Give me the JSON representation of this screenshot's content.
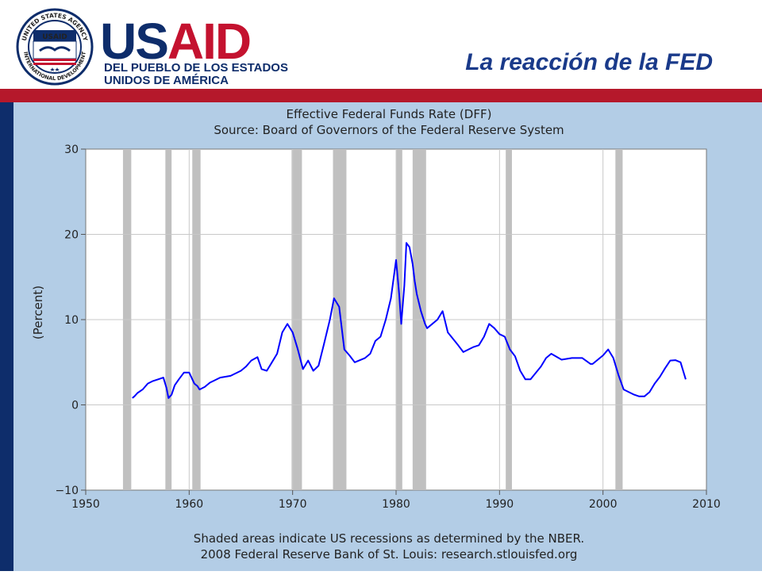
{
  "header": {
    "logo": {
      "seal_text_top": "UNITED STATES AGENCY",
      "seal_text_bottom": "INTERNATIONAL DEVELOPMENT",
      "seal_badge": "USAID",
      "wordmark_us": "US",
      "wordmark_aid": "AID",
      "tagline_line1": "DEL PUEBLO DE LOS ESTADOS",
      "tagline_line2": "UNIDOS DE AMÉRICA"
    },
    "slide_title": "La reacción de la FED"
  },
  "colors": {
    "brand_navy": "#0e2d6b",
    "brand_red": "#c4122f",
    "chart_background": "#b3cde6",
    "plot_background": "#ffffff",
    "series_color": "#0000ff",
    "recession_shade": "#c0c0c0"
  },
  "chart_data": {
    "type": "line",
    "title": "Effective Federal Funds Rate (DFF)",
    "subtitle": "Source: Board of Governors of the Federal Reserve System",
    "xlabel": "",
    "ylabel": "(Percent)",
    "xlim": [
      1950,
      2010
    ],
    "ylim": [
      -10,
      30
    ],
    "x_ticks": [
      1950,
      1960,
      1970,
      1980,
      1990,
      2000,
      2010
    ],
    "y_ticks": [
      -10,
      0,
      10,
      20,
      30
    ],
    "x_tick_labels": [
      "1950",
      "1960",
      "1970",
      "1980",
      "1990",
      "2000",
      "2010"
    ],
    "y_tick_labels": [
      "−10",
      "0",
      "10",
      "20",
      "30"
    ],
    "grid": true,
    "recessions": [
      [
        1953.6,
        1954.4
      ],
      [
        1957.7,
        1958.3
      ],
      [
        1960.3,
        1961.1
      ],
      [
        1969.9,
        1970.9
      ],
      [
        1973.9,
        1975.2
      ],
      [
        1980.0,
        1980.6
      ],
      [
        1981.6,
        1982.9
      ],
      [
        1990.6,
        1991.2
      ],
      [
        2001.2,
        2001.9
      ]
    ],
    "series": [
      {
        "x": [
          1954.5,
          1954.7,
          1955.0,
          1955.5,
          1956.0,
          1956.5,
          1957.0,
          1957.5,
          1957.8,
          1958.0,
          1958.3,
          1958.6,
          1959.0,
          1959.5,
          1960.0,
          1960.5,
          1960.8,
          1961.0,
          1961.5,
          1962.0,
          1963.0,
          1964.0,
          1965.0,
          1965.5,
          1966.0,
          1966.6,
          1967.0,
          1967.5,
          1968.0,
          1968.5,
          1969.0,
          1969.5,
          1970.0,
          1970.5,
          1971.0,
          1971.5,
          1972.0,
          1972.5,
          1973.0,
          1973.6,
          1974.0,
          1974.5,
          1975.0,
          1975.5,
          1976.0,
          1977.0,
          1977.5,
          1978.0,
          1978.5,
          1979.0,
          1979.5,
          1980.0,
          1980.3,
          1980.5,
          1980.8,
          1981.0,
          1981.3,
          1981.6,
          1981.8,
          1982.0,
          1982.4,
          1982.8,
          1983.0,
          1984.0,
          1984.5,
          1985.0,
          1986.0,
          1986.5,
          1987.0,
          1987.5,
          1988.0,
          1988.5,
          1989.0,
          1989.5,
          1990.0,
          1990.5,
          1991.0,
          1991.5,
          1992.0,
          1992.5,
          1993.0,
          1994.0,
          1994.5,
          1995.0,
          1996.0,
          1997.0,
          1998.0,
          1998.8,
          1999.0,
          2000.0,
          2000.5,
          2001.0,
          2001.5,
          2002.0,
          2003.0,
          2003.5,
          2004.0,
          2004.5,
          2005.0,
          2005.5,
          2006.0,
          2006.5,
          2007.0,
          2007.5,
          2008.0
        ],
        "values": [
          0.8,
          1.0,
          1.4,
          1.8,
          2.5,
          2.8,
          3.0,
          3.2,
          2.0,
          0.8,
          1.2,
          2.3,
          3.0,
          3.8,
          3.8,
          2.5,
          2.2,
          1.8,
          2.1,
          2.6,
          3.2,
          3.4,
          4.0,
          4.5,
          5.2,
          5.6,
          4.2,
          4.0,
          5.0,
          6.0,
          8.5,
          9.5,
          8.5,
          6.5,
          4.2,
          5.2,
          4.0,
          4.6,
          7.0,
          10.0,
          12.5,
          11.5,
          6.5,
          5.8,
          5.0,
          5.5,
          6.0,
          7.5,
          8.0,
          10.0,
          12.5,
          17.0,
          13.0,
          9.5,
          14.0,
          19.0,
          18.5,
          16.5,
          14.5,
          13.0,
          11.0,
          9.5,
          9.0,
          10.0,
          11.0,
          8.5,
          7.0,
          6.2,
          6.5,
          6.8,
          7.0,
          8.0,
          9.5,
          9.0,
          8.3,
          8.0,
          6.5,
          5.7,
          4.0,
          3.0,
          3.0,
          4.5,
          5.5,
          6.0,
          5.3,
          5.5,
          5.5,
          4.8,
          4.8,
          5.8,
          6.5,
          5.5,
          3.5,
          1.8,
          1.2,
          1.0,
          1.0,
          1.5,
          2.5,
          3.3,
          4.3,
          5.2,
          5.25,
          5.0,
          3.0
        ]
      }
    ],
    "notes": [
      "Shaded areas indicate US recessions as determined by the NBER.",
      "2008 Federal Reserve Bank of St. Louis: research.stlouisfed.org"
    ]
  }
}
